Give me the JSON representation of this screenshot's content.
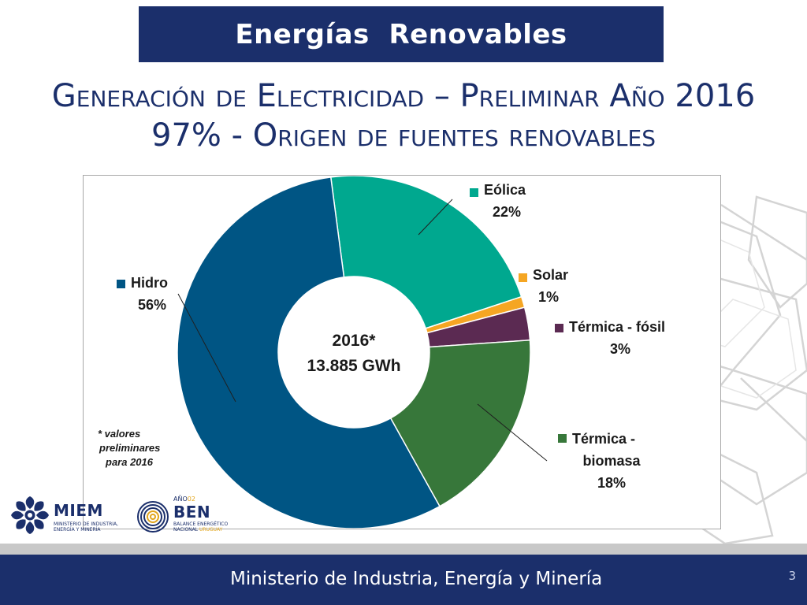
{
  "header": {
    "title": "Energías  Renovables",
    "subtitle_line1": "Generación de Electricidad – Preliminar Año 2016",
    "subtitle_line2": "97% - Origen de fuentes renovables"
  },
  "chart_data": {
    "type": "pie",
    "donut": true,
    "center_label_line1": "2016*",
    "center_label_line2": "13.885 GWh",
    "note": [
      "* valores",
      "preliminares",
      "para 2016"
    ],
    "slices": [
      {
        "name": "Eólica",
        "label_lines": [
          "Eólica"
        ],
        "value_label": "22%",
        "value": 22,
        "color": "#00a88f"
      },
      {
        "name": "Solar",
        "label_lines": [
          "Solar"
        ],
        "value_label": "1%",
        "value": 1,
        "color": "#f5a623"
      },
      {
        "name": "Térmica - fósil",
        "label_lines": [
          "Térmica - fósil"
        ],
        "value_label": "3%",
        "value": 3,
        "color": "#5b2a52"
      },
      {
        "name": "Térmica - biomasa",
        "label_lines": [
          "Térmica -",
          "biomasa"
        ],
        "value_label": "18%",
        "value": 18,
        "color": "#37773a"
      },
      {
        "name": "Hidro",
        "label_lines": [
          "Hidro"
        ],
        "value_label": "56%",
        "value": 56,
        "color": "#005584"
      }
    ]
  },
  "logos": {
    "miem_name": "MIEM",
    "miem_sub": [
      "Ministerio de Industria,",
      "Energía y Minería"
    ],
    "ben_year": "AÑO",
    "ben_year_suffix": "02",
    "ben_name": "BEN",
    "ben_sub": [
      "Balance Energético",
      "Nacional"
    ],
    "ben_sub_accent": "Uruguay"
  },
  "footer": {
    "ministry": "Ministerio de Industria, Energía y Minería",
    "page_number": "3"
  }
}
